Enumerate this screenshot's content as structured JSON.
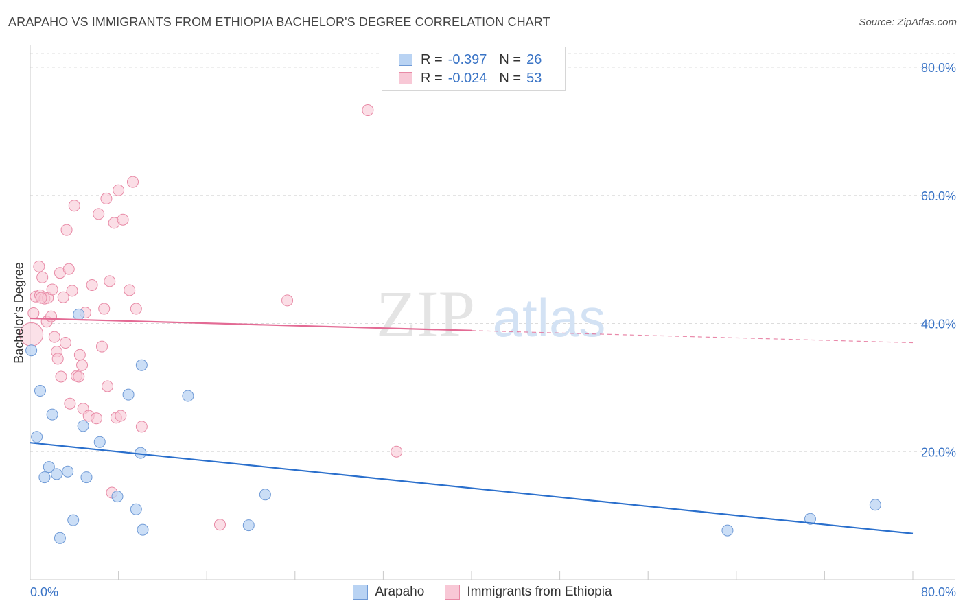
{
  "header": {
    "title": "ARAPAHO VS IMMIGRANTS FROM ETHIOPIA BACHELOR'S DEGREE CORRELATION CHART",
    "source": "Source: ZipAtlas.com"
  },
  "watermark": {
    "zip": "ZIP",
    "atlas": "atlas"
  },
  "legend": {
    "rows": [
      {
        "r_label": "R =",
        "r_value": "-0.397",
        "n_label": "N =",
        "n_value": "26"
      },
      {
        "r_label": "R =",
        "r_value": "-0.024",
        "n_label": "N =",
        "n_value": "53"
      }
    ]
  },
  "colors": {
    "arapaho_fill": "#b9d3f3",
    "arapaho_stroke": "#6f9ad6",
    "arapaho_line": "#2a6fcc",
    "ethiopia_fill": "#f8c8d6",
    "ethiopia_stroke": "#e88aa6",
    "ethiopia_line": "#e36a94",
    "grid": "#dcdcdc",
    "tick_text": "#3a74c6"
  },
  "chart_data": {
    "type": "scatter",
    "title": "ARAPAHO VS IMMIGRANTS FROM ETHIOPIA BACHELOR'S DEGREE CORRELATION CHART",
    "xlabel": "",
    "ylabel": "Bachelor's Degree",
    "xlim": [
      0,
      80
    ],
    "ylim": [
      0,
      84
    ],
    "x_tick_labels": [
      "0.0%",
      "80.0%"
    ],
    "y_ticks": [
      20,
      40,
      60,
      80
    ],
    "y_tick_labels": [
      "20.0%",
      "40.0%",
      "60.0%",
      "80.0%"
    ],
    "grid": true,
    "legend_position": "top-center",
    "series": [
      {
        "name": "Arapaho",
        "r": -0.397,
        "n": 26,
        "trend": {
          "x": [
            0,
            80
          ],
          "y": [
            21.4,
            7.2
          ],
          "solid_until": 80
        },
        "points": [
          [
            0.1,
            35.8
          ],
          [
            0.6,
            22.3
          ],
          [
            0.9,
            29.5
          ],
          [
            1.3,
            16.0
          ],
          [
            1.7,
            17.6
          ],
          [
            2.0,
            25.8
          ],
          [
            2.4,
            16.5
          ],
          [
            2.7,
            6.5
          ],
          [
            3.4,
            16.9
          ],
          [
            3.9,
            9.3
          ],
          [
            4.4,
            41.4
          ],
          [
            4.8,
            24.0
          ],
          [
            5.1,
            16.0
          ],
          [
            6.3,
            21.5
          ],
          [
            7.9,
            13.0
          ],
          [
            8.9,
            28.9
          ],
          [
            9.6,
            11.0
          ],
          [
            10.0,
            19.8
          ],
          [
            10.2,
            7.8
          ],
          [
            10.1,
            33.5
          ],
          [
            14.3,
            28.7
          ],
          [
            19.8,
            8.5
          ],
          [
            21.3,
            13.3
          ],
          [
            63.2,
            7.7
          ],
          [
            70.7,
            9.5
          ],
          [
            76.6,
            11.7
          ]
        ]
      },
      {
        "name": "Immigrants from Ethiopia",
        "r": -0.024,
        "n": 53,
        "trend": {
          "x": [
            0,
            80
          ],
          "y": [
            40.8,
            37.0
          ],
          "solid_until": 40
        },
        "points": [
          [
            0.1,
            38.3
          ],
          [
            0.3,
            41.6
          ],
          [
            0.5,
            44.2
          ],
          [
            0.9,
            44.4
          ],
          [
            0.8,
            48.9
          ],
          [
            1.1,
            47.2
          ],
          [
            1.3,
            43.9
          ],
          [
            1.5,
            40.3
          ],
          [
            1.6,
            44.0
          ],
          [
            1.9,
            41.1
          ],
          [
            2.2,
            37.9
          ],
          [
            2.4,
            35.6
          ],
          [
            2.5,
            34.5
          ],
          [
            2.7,
            47.9
          ],
          [
            2.8,
            31.7
          ],
          [
            3.0,
            44.1
          ],
          [
            3.2,
            37.0
          ],
          [
            3.3,
            54.6
          ],
          [
            3.5,
            48.5
          ],
          [
            3.6,
            27.5
          ],
          [
            3.8,
            45.1
          ],
          [
            4.0,
            58.4
          ],
          [
            4.2,
            31.8
          ],
          [
            4.4,
            31.7
          ],
          [
            4.5,
            35.1
          ],
          [
            4.7,
            33.5
          ],
          [
            4.8,
            26.7
          ],
          [
            5.0,
            41.7
          ],
          [
            5.3,
            25.6
          ],
          [
            5.6,
            46.0
          ],
          [
            6.0,
            25.2
          ],
          [
            6.2,
            57.1
          ],
          [
            6.5,
            36.4
          ],
          [
            6.7,
            42.3
          ],
          [
            6.9,
            59.5
          ],
          [
            7.0,
            30.2
          ],
          [
            7.2,
            46.6
          ],
          [
            7.4,
            13.6
          ],
          [
            7.6,
            55.7
          ],
          [
            7.8,
            25.3
          ],
          [
            8.0,
            60.8
          ],
          [
            8.2,
            25.6
          ],
          [
            8.4,
            56.2
          ],
          [
            9.0,
            45.2
          ],
          [
            9.3,
            62.1
          ],
          [
            9.6,
            42.3
          ],
          [
            10.1,
            23.9
          ],
          [
            17.2,
            8.6
          ],
          [
            23.3,
            43.6
          ],
          [
            30.6,
            73.3
          ],
          [
            33.2,
            20.0
          ],
          [
            1.0,
            44.0
          ],
          [
            2.0,
            45.3
          ]
        ]
      }
    ]
  },
  "bottom_legend": {
    "items": [
      {
        "label": "Arapaho"
      },
      {
        "label": "Immigrants from Ethiopia"
      }
    ]
  }
}
